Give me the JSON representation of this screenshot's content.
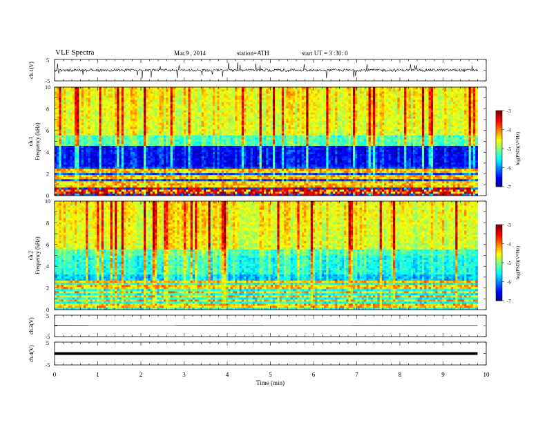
{
  "header": {
    "title": "VLF Spectra",
    "date": "Mar.9 , 2014",
    "station": "station=ATH",
    "start": "start UT = 3 :30: 0"
  },
  "colors": {
    "background": "#ffffff",
    "axis": "#000000"
  },
  "chart_data": [
    {
      "type": "line",
      "panel": "ch1-waveform",
      "ylabel": "ch.1(V)",
      "ylim": [
        -5,
        5
      ],
      "yticks": [
        "5",
        "-5"
      ],
      "baseline": 0,
      "noise_amplitude": 0.6,
      "spike_amplitude": 3.5,
      "xlim": [
        0,
        10
      ]
    },
    {
      "type": "heatmap",
      "panel": "ch1-spectrogram",
      "ylabel": "ch.1",
      "ylabel2": "Frequency (kHz)",
      "ylim": [
        0,
        10
      ],
      "yticks": [
        "0",
        "2",
        "4",
        "6",
        "8",
        "10"
      ],
      "xlim": [
        0,
        10
      ],
      "data_end_min": 9.8,
      "colorbar": {
        "label": "log(PSD)(V²/Hz)",
        "range": [
          -7,
          -3
        ],
        "ticks": [
          "-3",
          "-4",
          "-5",
          "-6",
          "-7"
        ]
      }
    },
    {
      "type": "heatmap",
      "panel": "ch2-spectrogram",
      "ylabel": "ch.2",
      "ylabel2": "Frequency (kHz)",
      "ylim": [
        0,
        10
      ],
      "yticks": [
        "0",
        "2",
        "4",
        "6",
        "8",
        "10"
      ],
      "xlim": [
        0,
        10
      ],
      "data_end_min": 9.8,
      "colorbar": {
        "label": "log(PSD)(V²/Hz)",
        "range": [
          -7,
          -3
        ],
        "ticks": [
          "-3",
          "-4",
          "-5",
          "-6",
          "-7"
        ]
      }
    },
    {
      "type": "line",
      "panel": "ch3-waveform",
      "ylabel": "ch.3(V)",
      "ylim": [
        -5,
        5
      ],
      "yticks": [
        "5",
        "-5"
      ],
      "baseline": 0.3,
      "xlim": [
        0,
        10
      ]
    },
    {
      "type": "line",
      "panel": "ch4-waveform",
      "ylabel": "ch.4(V)",
      "ylim": [
        -5,
        5
      ],
      "yticks": [
        "5",
        "-5"
      ],
      "baseline": 0,
      "xlim": [
        0,
        10
      ],
      "xlabel": "Time (min)",
      "xticks": [
        "0",
        "1",
        "2",
        "3",
        "4",
        "5",
        "6",
        "7",
        "8",
        "9",
        "10"
      ]
    }
  ]
}
